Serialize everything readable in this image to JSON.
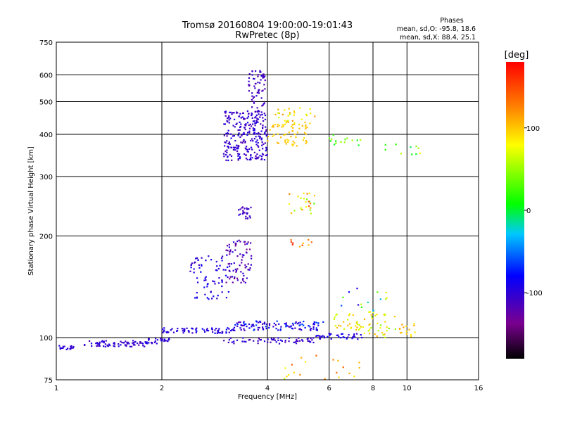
{
  "chart_data": {
    "type": "scatter",
    "title": "Tromsø 20160804 19:00:00-19:01:43",
    "subtitle": "RwPretec (8p)",
    "xlabel": "Frequency [MHz]",
    "ylabel": "Stationary phase Virtual Height [km]",
    "x_scale": "log",
    "y_scale": "log",
    "xlim": [
      1,
      16
    ],
    "ylim": [
      75,
      750
    ],
    "x_ticks": [
      1,
      2,
      4,
      6,
      8,
      10,
      16
    ],
    "x_tick_labels": [
      "1",
      "2",
      "4",
      "6",
      "8",
      "10",
      "16"
    ],
    "y_ticks": [
      75,
      100,
      200,
      300,
      400,
      500,
      600,
      750
    ],
    "y_tick_labels": [
      "75",
      "100",
      "200",
      "300",
      "400",
      "500",
      "600",
      "750"
    ],
    "grid": true,
    "phase_stats": {
      "title": "Phases",
      "line1": "mean, sd,O: -95.8, 18.6",
      "line2": "mean, sd,X:  88.4, 25.1"
    },
    "colorbar": {
      "label": "[deg]",
      "range": [
        -180,
        180
      ],
      "ticks": [
        100,
        0,
        -100
      ],
      "tick_labels": [
        "100",
        "0",
        "-100"
      ]
    },
    "clusters": [
      {
        "f": [
          1.0,
          1.12
        ],
        "h": [
          92,
          95
        ],
        "n": 20,
        "phase": [
          -110,
          -90
        ]
      },
      {
        "f": [
          1.2,
          1.8
        ],
        "h": [
          94,
          98
        ],
        "n": 70,
        "phase": [
          -120,
          -90
        ]
      },
      {
        "f": [
          1.8,
          2.1
        ],
        "h": [
          96,
          100
        ],
        "n": 30,
        "phase": [
          -110,
          -90
        ]
      },
      {
        "f": [
          2.0,
          3.2
        ],
        "h": [
          103,
          107
        ],
        "n": 70,
        "phase": [
          -110,
          -80
        ]
      },
      {
        "f": [
          3.2,
          5.8
        ],
        "h": [
          105,
          112
        ],
        "n": 110,
        "phase": [
          -120,
          -60
        ]
      },
      {
        "f": [
          3.0,
          5.5
        ],
        "h": [
          96,
          100
        ],
        "n": 60,
        "phase": [
          -120,
          -90
        ]
      },
      {
        "f": [
          5.5,
          7.5
        ],
        "h": [
          99,
          103
        ],
        "n": 40,
        "phase": [
          -110,
          -80
        ]
      },
      {
        "f": [
          2.4,
          3.1
        ],
        "h": [
          130,
          175
        ],
        "n": 70,
        "phase": [
          -110,
          -80
        ]
      },
      {
        "f": [
          3.05,
          3.6
        ],
        "h": [
          145,
          195
        ],
        "n": 80,
        "phase": [
          -140,
          -90
        ]
      },
      {
        "f": [
          3.0,
          4.0
        ],
        "h": [
          335,
          470
        ],
        "n": 260,
        "phase": [
          -120,
          -90
        ]
      },
      {
        "f": [
          3.5,
          3.95
        ],
        "h": [
          470,
          620
        ],
        "n": 60,
        "phase": [
          -120,
          -100
        ]
      },
      {
        "f": [
          3.3,
          3.6
        ],
        "h": [
          225,
          245
        ],
        "n": 25,
        "phase": [
          -120,
          -100
        ]
      },
      {
        "f": [
          4.0,
          5.2
        ],
        "h": [
          370,
          430
        ],
        "n": 60,
        "phase": [
          90,
          110
        ]
      },
      {
        "f": [
          4.1,
          5.5
        ],
        "h": [
          430,
          480
        ],
        "n": 30,
        "phase": [
          60,
          120
        ]
      },
      {
        "f": [
          4.6,
          5.5
        ],
        "h": [
          230,
          270
        ],
        "n": 25,
        "phase": [
          30,
          140
        ]
      },
      {
        "f": [
          6.2,
          7.5
        ],
        "h": [
          105,
          118
        ],
        "n": 30,
        "phase": [
          60,
          110
        ]
      },
      {
        "f": [
          7.5,
          9.5
        ],
        "h": [
          100,
          120
        ],
        "n": 35,
        "phase": [
          40,
          110
        ]
      },
      {
        "f": [
          9.5,
          10.6
        ],
        "h": [
          100,
          110
        ],
        "n": 15,
        "phase": [
          80,
          120
        ]
      },
      {
        "f": [
          6.0,
          7.5
        ],
        "h": [
          370,
          400
        ],
        "n": 15,
        "phase": [
          -20,
          60
        ]
      },
      {
        "f": [
          8.5,
          11.0
        ],
        "h": [
          340,
          380
        ],
        "n": 10,
        "phase": [
          -10,
          80
        ]
      },
      {
        "f": [
          4.2,
          7.5
        ],
        "h": [
          75,
          90
        ],
        "n": 20,
        "phase": [
          60,
          140
        ]
      },
      {
        "f": [
          4.6,
          5.4
        ],
        "h": [
          185,
          195
        ],
        "n": 10,
        "phase": [
          100,
          160
        ]
      },
      {
        "f": [
          6.2,
          8.8
        ],
        "h": [
          120,
          140
        ],
        "n": 15,
        "phase": [
          -100,
          110
        ]
      }
    ]
  }
}
